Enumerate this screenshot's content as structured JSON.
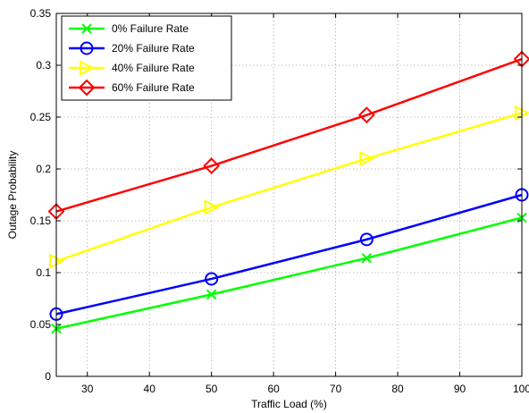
{
  "chart_data": {
    "type": "line",
    "xlabel": "Traffic Load (%)",
    "ylabel": "Outage Probability",
    "xlim": [
      25,
      100
    ],
    "ylim": [
      0,
      0.35
    ],
    "xticks": [
      30,
      40,
      50,
      60,
      70,
      80,
      90,
      100
    ],
    "yticks": [
      0,
      0.05,
      0.1,
      0.15,
      0.2,
      0.25,
      0.3,
      0.35
    ],
    "xtick_labels": [
      "30",
      "40",
      "50",
      "60",
      "70",
      "80",
      "90",
      "100"
    ],
    "ytick_labels": [
      "0",
      "0.05",
      "0.1",
      "0.15",
      "0.2",
      "0.25",
      "0.3",
      "0.35"
    ],
    "grid": true,
    "legend_position": "top-left",
    "x": [
      25,
      50,
      75,
      100
    ],
    "series": [
      {
        "name": "0% Failure Rate",
        "values": [
          0.046,
          0.079,
          0.114,
          0.153
        ],
        "color": "#00ff00",
        "marker": "x"
      },
      {
        "name": "20% Failure Rate",
        "values": [
          0.06,
          0.094,
          0.132,
          0.175
        ],
        "color": "#0000ff",
        "marker": "circle"
      },
      {
        "name": "40% Failure Rate",
        "values": [
          0.111,
          0.163,
          0.21,
          0.254
        ],
        "color": "#ffff00",
        "marker": "triangle-right"
      },
      {
        "name": "60% Failure Rate",
        "values": [
          0.159,
          0.203,
          0.252,
          0.306
        ],
        "color": "#ff0000",
        "marker": "diamond"
      }
    ]
  }
}
